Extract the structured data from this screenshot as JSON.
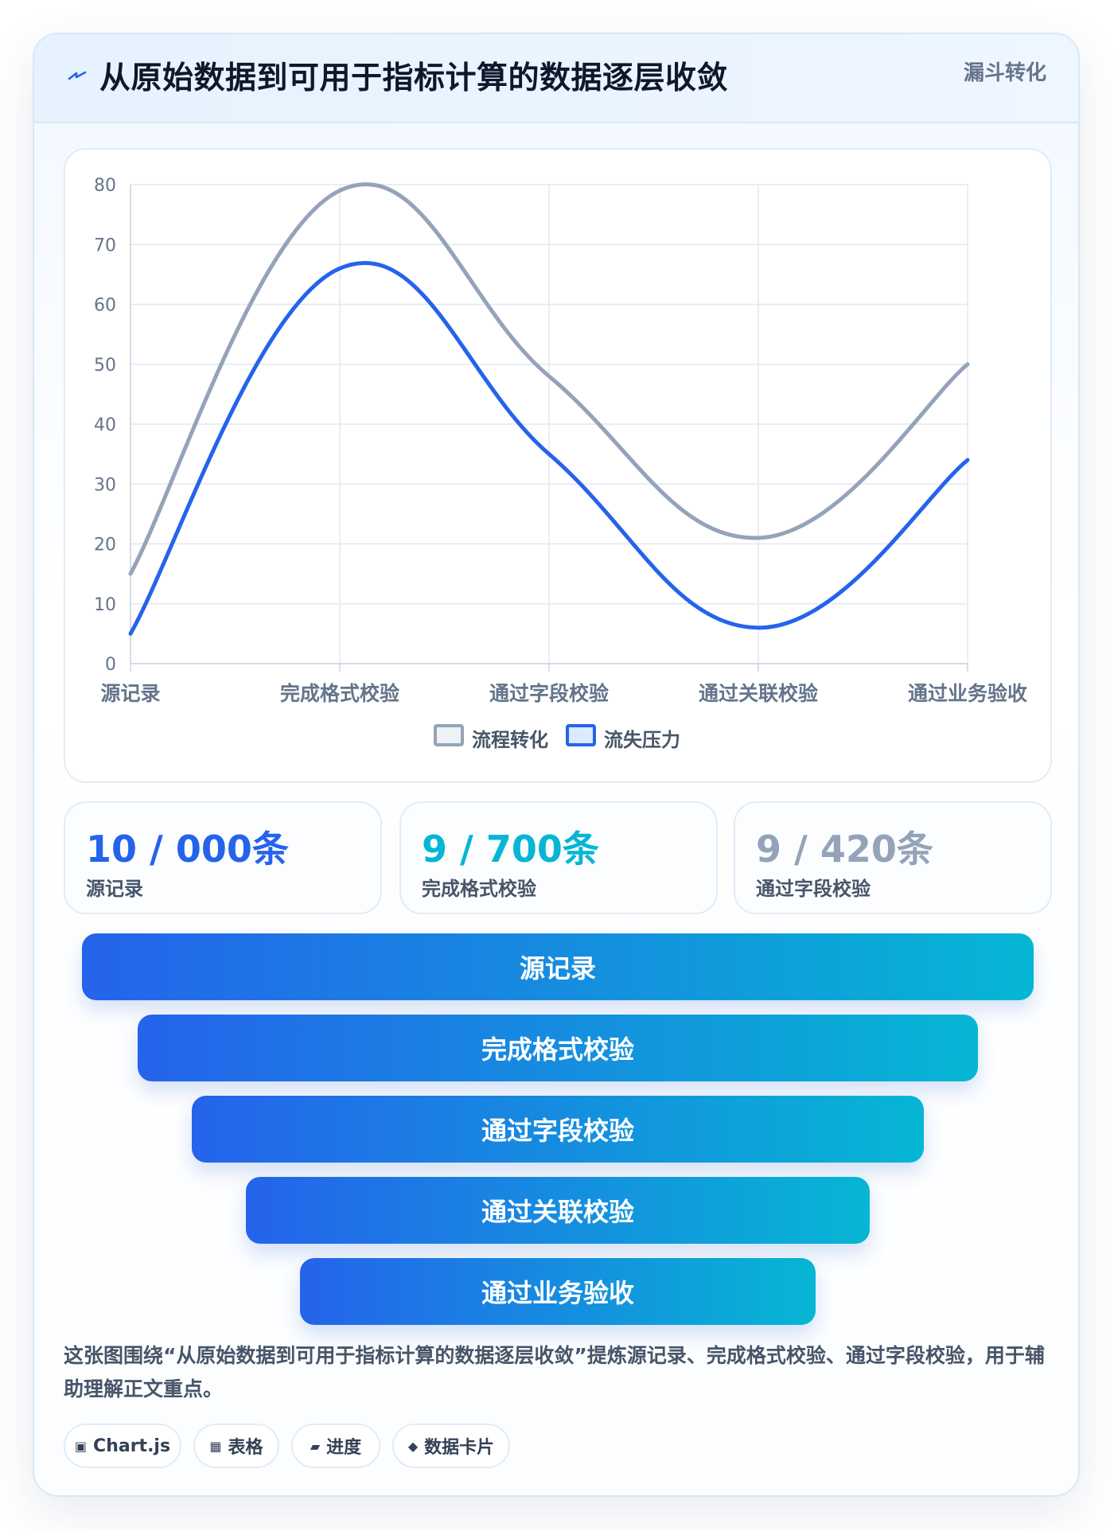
{
  "header": {
    "title": "从原始数据到可用于指标计算的数据逐层收敛",
    "badge": "漏斗转化",
    "icon": "lightning-icon"
  },
  "chart_data": {
    "type": "line",
    "categories": [
      "源记录",
      "完成格式校验",
      "通过字段校验",
      "通过关联校验",
      "通过业务验收"
    ],
    "ylim": [
      0,
      80
    ],
    "yticks": [
      0,
      10,
      20,
      30,
      40,
      50,
      60,
      70,
      80
    ],
    "grid": true,
    "legend_position": "bottom",
    "series": [
      {
        "name": "流程转化",
        "values": [
          15,
          79,
          48,
          21,
          50
        ],
        "color": "#94a3b8"
      },
      {
        "name": "流失压力",
        "values": [
          5,
          66,
          35,
          6,
          34
        ],
        "color": "#2563eb"
      }
    ]
  },
  "stats": [
    {
      "value": "10 / 000条",
      "label": "源记录",
      "color": "#2563eb"
    },
    {
      "value": "9 / 700条",
      "label": "完成格式校验",
      "color": "#06b6d4"
    },
    {
      "value": "9 / 420条",
      "label": "通过字段校验",
      "color": "#94a3b8"
    }
  ],
  "funnel": [
    "源记录",
    "完成格式校验",
    "通过字段校验",
    "通过关联校验",
    "通过业务验收"
  ],
  "description": "这张图围绕“从原始数据到可用于指标计算的数据逐层收敛”提炼源记录、完成格式校验、通过字段校验，用于辅助理解正文重点。",
  "tags": [
    {
      "icon": "▣",
      "label": "Chart.js"
    },
    {
      "icon": "▦",
      "label": "表格"
    },
    {
      "icon": "▰",
      "label": "进度"
    },
    {
      "icon": "◆",
      "label": "数据卡片"
    }
  ]
}
